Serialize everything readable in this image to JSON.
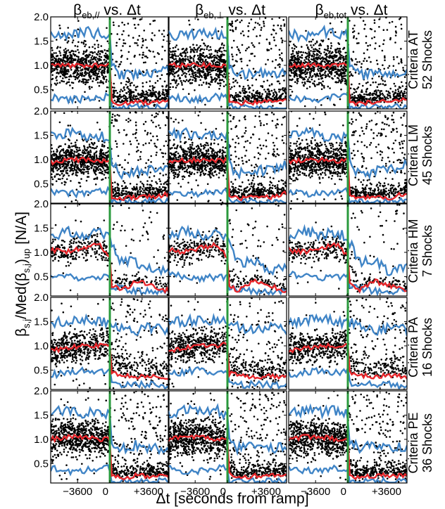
{
  "figure": {
    "columns": [
      {
        "base": "β",
        "sub": "eb,//",
        "rest": " vs. Δt"
      },
      {
        "base": "β",
        "sub": "eb,⊥",
        "rest": " vs. Δt"
      },
      {
        "base": "β",
        "sub": "eb,tot",
        "rest": " vs. Δt"
      }
    ],
    "rows": [
      {
        "criteria": "Criteria AT",
        "shocks": "52 Shocks"
      },
      {
        "criteria": "Criteria LM",
        "shocks": "45 Shocks"
      },
      {
        "criteria": "Criteria HM",
        "shocks": "7 Shocks"
      },
      {
        "criteria": "Criteria PA",
        "shocks": "16 Shocks"
      },
      {
        "criteria": "Criteria PE",
        "shocks": "36 Shocks"
      }
    ],
    "ylabel": {
      "p1": "β",
      "sub1": "s,j",
      "p2": "/Med(β",
      "sub2": "s,j",
      "p3": ")",
      "sub3": "up",
      "p4": " [N/A]"
    },
    "xlabel": "Δt [seconds from ramp]",
    "y_ticks": [
      "2.0",
      "1.5",
      "1.0",
      "0.5"
    ],
    "x_ticks": [
      "−3600",
      "0",
      "+3600"
    ],
    "colors": {
      "points": "#000000",
      "median": "#e8262b",
      "bounds": "#3f84c6",
      "ramp": "#2a9a3c",
      "frame": "#000000"
    }
  },
  "chart_data": {
    "type": "scatter",
    "layout": "5 rows x 3 columns of panels",
    "xlabel": "Δt [seconds from ramp]",
    "ylabel": "β_s,j/Med(β_s,j)_up [N/A]",
    "xlim": [
      -6600,
      6600
    ],
    "ylim": [
      0.1,
      2.0
    ],
    "x_ticks": [
      -3600,
      0,
      3600
    ],
    "y_ticks": [
      0.5,
      1.0,
      1.5,
      2.0
    ],
    "columns": [
      "β_eb,// vs. Δt",
      "β_eb,⊥ vs. Δt",
      "β_eb,tot vs. Δt"
    ],
    "rows": [
      "Criteria AT 52 Shocks",
      "Criteria LM 45 Shocks",
      "Criteria HM 7 Shocks",
      "Criteria PA 16 Shocks",
      "Criteria PE 36 Shocks"
    ],
    "vertical_line_x": 0,
    "profiles": {
      "x_edges": [
        -6600,
        -4800,
        -3000,
        -1200,
        0,
        0,
        1200,
        3000,
        4800,
        6600
      ],
      "median": {
        "AT": [
          1.0,
          1.0,
          1.0,
          1.0,
          1.0,
          0.25,
          0.22,
          0.24,
          0.24,
          0.3
        ],
        "LM": [
          0.95,
          0.98,
          1.0,
          0.97,
          0.98,
          0.25,
          0.2,
          0.22,
          0.22,
          0.3
        ],
        "HM": [
          1.05,
          1.0,
          1.1,
          1.15,
          0.9,
          0.35,
          0.2,
          0.4,
          0.3,
          0.2
        ],
        "PA": [
          0.9,
          0.95,
          1.0,
          1.0,
          1.05,
          0.45,
          0.4,
          0.35,
          0.4,
          0.35
        ],
        "PE": [
          1.0,
          1.05,
          1.05,
          1.0,
          1.0,
          0.3,
          0.2,
          0.25,
          0.25,
          0.25
        ]
      },
      "upper_bound": {
        "AT": [
          1.65,
          1.6,
          1.7,
          1.65,
          1.6,
          1.0,
          0.8,
          0.85,
          0.8,
          0.9
        ],
        "LM": [
          1.5,
          1.55,
          1.5,
          1.45,
          1.5,
          0.95,
          0.7,
          0.75,
          0.8,
          0.9
        ],
        "HM": [
          1.3,
          1.45,
          1.35,
          1.4,
          1.3,
          1.3,
          0.8,
          0.8,
          0.6,
          0.7
        ],
        "PA": [
          1.5,
          1.5,
          1.55,
          1.5,
          1.5,
          1.5,
          1.4,
          1.3,
          1.4,
          1.3
        ],
        "PE": [
          1.55,
          1.6,
          1.55,
          1.6,
          1.5,
          1.0,
          0.8,
          0.9,
          0.8,
          0.85
        ]
      },
      "lower_bound": {
        "AT": [
          0.35,
          0.3,
          0.3,
          0.35,
          0.35,
          0.15,
          0.12,
          0.13,
          0.13,
          0.14
        ],
        "LM": [
          0.35,
          0.3,
          0.3,
          0.35,
          0.35,
          0.15,
          0.12,
          0.13,
          0.13,
          0.14
        ],
        "HM": [
          0.55,
          0.5,
          0.45,
          0.5,
          0.5,
          0.3,
          0.25,
          0.2,
          0.2,
          0.2
        ],
        "PA": [
          0.4,
          0.45,
          0.5,
          0.45,
          0.5,
          0.25,
          0.2,
          0.2,
          0.2,
          0.15
        ],
        "PE": [
          0.4,
          0.35,
          0.35,
          0.4,
          0.4,
          0.15,
          0.12,
          0.13,
          0.13,
          0.14
        ]
      }
    }
  }
}
